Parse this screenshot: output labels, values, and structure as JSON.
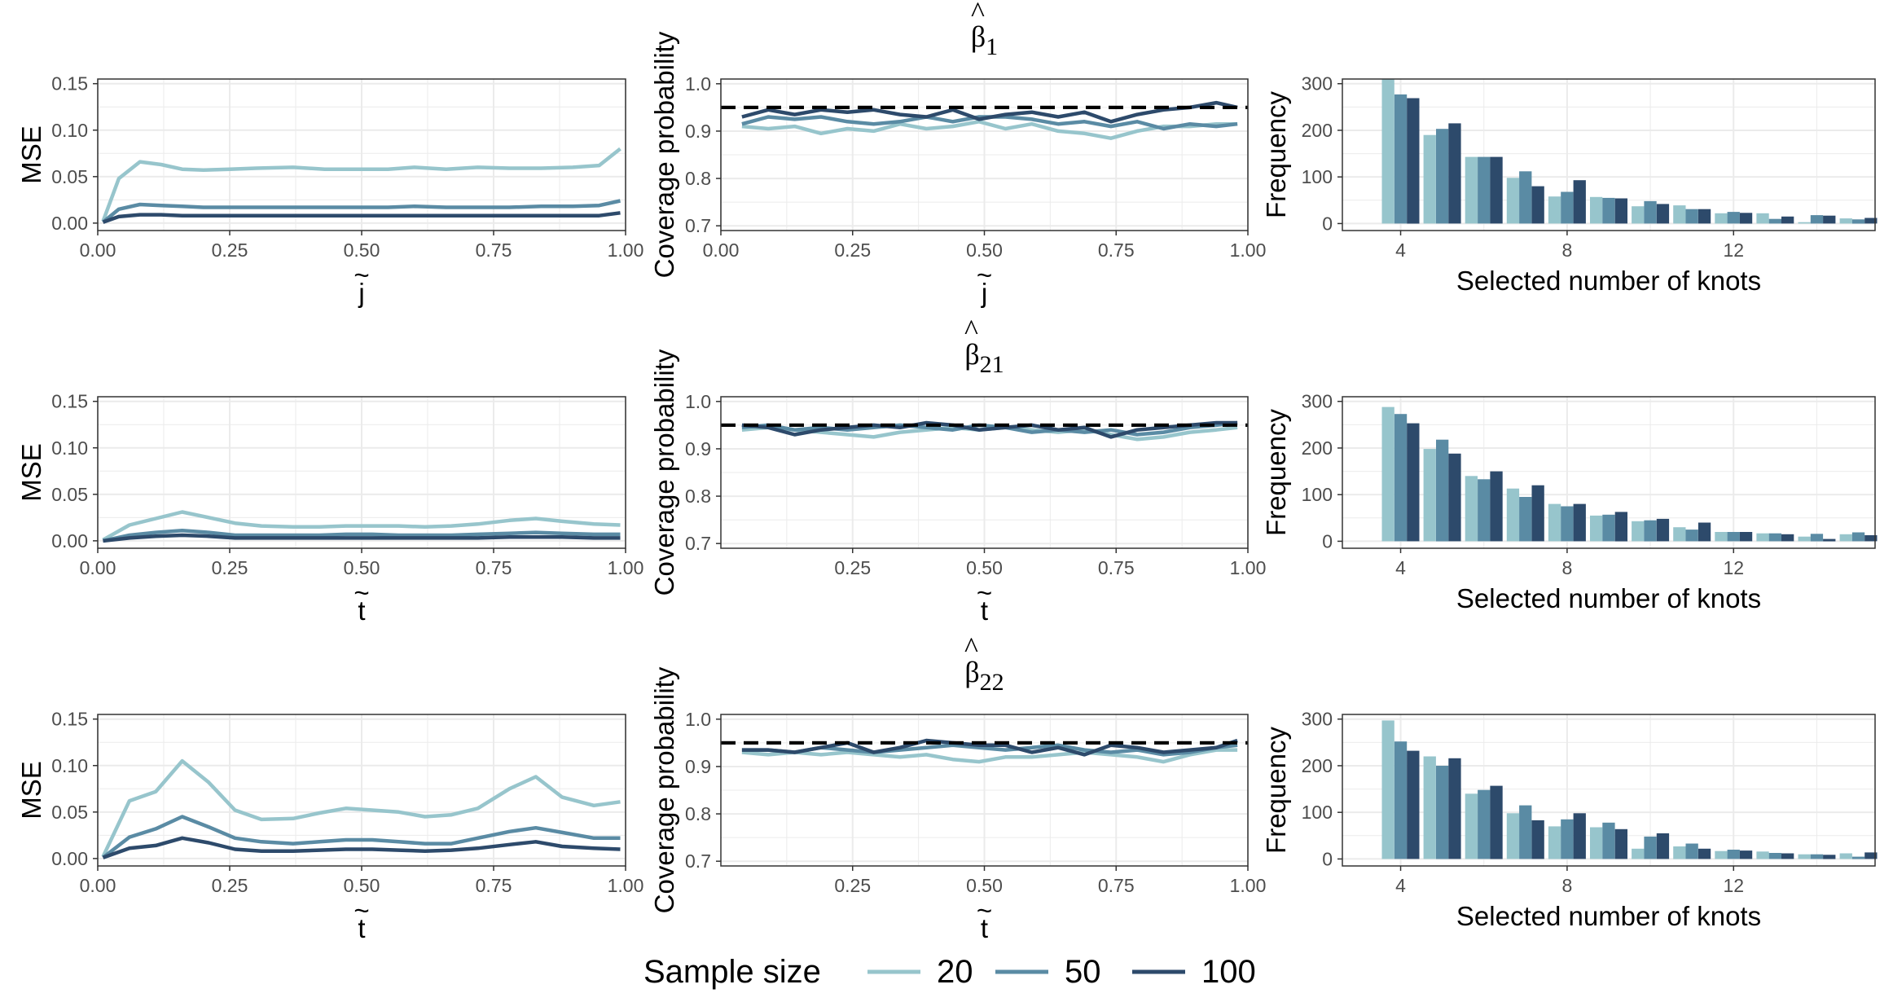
{
  "colors": {
    "n20": "#97c5cc",
    "n50": "#5a8ba4",
    "n100": "#2d4a6b",
    "reference": "#000000",
    "grid": "#ebebeb",
    "panel_border": "#333333"
  },
  "legend": {
    "title": "Sample size",
    "items": [
      {
        "label": "20",
        "color_key": "n20"
      },
      {
        "label": "50",
        "color_key": "n50"
      },
      {
        "label": "100",
        "color_key": "n100"
      }
    ]
  },
  "chart_data": [
    {
      "id": "mse-row1",
      "type": "line",
      "title": "",
      "xlabel": "j̃",
      "ylabel": "MSE",
      "xlim": [
        0,
        1
      ],
      "ylim": [
        -0.008,
        0.155
      ],
      "xticks": [
        0.0,
        0.25,
        0.5,
        0.75,
        1.0
      ],
      "xtick_labels": [
        "0.00",
        "0.25",
        "0.50",
        "0.75",
        "1.00"
      ],
      "yticks": [
        0.0,
        0.05,
        0.1,
        0.15
      ],
      "ytick_labels": [
        "0.00",
        "0.05",
        "0.10",
        "0.15"
      ],
      "x": [
        0.01,
        0.04,
        0.08,
        0.12,
        0.16,
        0.2,
        0.25,
        0.3,
        0.37,
        0.43,
        0.5,
        0.55,
        0.6,
        0.66,
        0.72,
        0.78,
        0.84,
        0.9,
        0.95,
        0.99
      ],
      "series": [
        {
          "name": "20",
          "color_key": "n20",
          "values": [
            0.002,
            0.048,
            0.066,
            0.063,
            0.058,
            0.057,
            0.058,
            0.059,
            0.06,
            0.058,
            0.058,
            0.058,
            0.06,
            0.058,
            0.06,
            0.059,
            0.059,
            0.06,
            0.062,
            0.08
          ]
        },
        {
          "name": "50",
          "color_key": "n50",
          "values": [
            0.001,
            0.015,
            0.02,
            0.019,
            0.018,
            0.017,
            0.017,
            0.017,
            0.017,
            0.017,
            0.017,
            0.017,
            0.018,
            0.017,
            0.017,
            0.017,
            0.018,
            0.018,
            0.019,
            0.024
          ]
        },
        {
          "name": "100",
          "color_key": "n100",
          "values": [
            0.001,
            0.007,
            0.009,
            0.009,
            0.008,
            0.008,
            0.008,
            0.008,
            0.008,
            0.008,
            0.008,
            0.008,
            0.008,
            0.008,
            0.008,
            0.008,
            0.008,
            0.008,
            0.008,
            0.011
          ]
        }
      ]
    },
    {
      "id": "coverage-row1",
      "type": "line",
      "title": "β̂1",
      "xlabel": "j̃",
      "ylabel": "Coverage probability",
      "xlim": [
        0,
        1
      ],
      "ylim": [
        0.69,
        1.01
      ],
      "xticks": [
        0.0,
        0.25,
        0.5,
        0.75,
        1.0
      ],
      "xtick_labels": [
        "0.00",
        "0.25",
        "0.50",
        "0.75",
        "1.00"
      ],
      "yticks": [
        0.7,
        0.8,
        0.9,
        1.0
      ],
      "ytick_labels": [
        "0.7",
        "0.8",
        "0.9",
        "1.0"
      ],
      "reference_line": 0.95,
      "x": [
        0.04,
        0.09,
        0.14,
        0.19,
        0.24,
        0.29,
        0.34,
        0.39,
        0.44,
        0.49,
        0.54,
        0.59,
        0.64,
        0.69,
        0.74,
        0.79,
        0.84,
        0.89,
        0.94,
        0.98
      ],
      "series": [
        {
          "name": "20",
          "color_key": "n20",
          "values": [
            0.91,
            0.905,
            0.91,
            0.895,
            0.905,
            0.9,
            0.915,
            0.905,
            0.91,
            0.92,
            0.905,
            0.915,
            0.9,
            0.895,
            0.885,
            0.9,
            0.91,
            0.91,
            0.915,
            0.915
          ]
        },
        {
          "name": "50",
          "color_key": "n50",
          "values": [
            0.915,
            0.93,
            0.925,
            0.93,
            0.92,
            0.915,
            0.92,
            0.93,
            0.92,
            0.93,
            0.93,
            0.925,
            0.915,
            0.92,
            0.91,
            0.92,
            0.905,
            0.915,
            0.91,
            0.915
          ]
        },
        {
          "name": "100",
          "color_key": "n100",
          "values": [
            0.93,
            0.945,
            0.935,
            0.945,
            0.94,
            0.945,
            0.935,
            0.93,
            0.945,
            0.925,
            0.935,
            0.94,
            0.93,
            0.94,
            0.92,
            0.935,
            0.945,
            0.95,
            0.96,
            0.95
          ]
        }
      ]
    },
    {
      "id": "knots-row1",
      "type": "bar",
      "title": "",
      "xlabel": "Selected number of knots",
      "ylabel": "Frequency",
      "xlim": [
        2.6,
        15.4
      ],
      "ylim": [
        -15,
        310
      ],
      "xticks": [
        4,
        8,
        12
      ],
      "xtick_labels": [
        "4",
        "8",
        "12"
      ],
      "yticks": [
        0,
        100,
        200,
        300
      ],
      "ytick_labels": [
        "0",
        "100",
        "200",
        "300"
      ],
      "categories": [
        4,
        5,
        6,
        7,
        8,
        9,
        10,
        11,
        12,
        13,
        14,
        15
      ],
      "series": [
        {
          "name": "20",
          "color_key": "n20",
          "values": [
            310,
            190,
            143,
            98,
            58,
            57,
            37,
            39,
            22,
            22,
            3,
            11
          ]
        },
        {
          "name": "50",
          "color_key": "n50",
          "values": [
            277,
            203,
            143,
            112,
            68,
            55,
            48,
            31,
            25,
            10,
            18,
            9
          ]
        },
        {
          "name": "100",
          "color_key": "n100",
          "values": [
            269,
            215,
            143,
            80,
            93,
            54,
            42,
            31,
            23,
            15,
            17,
            12
          ]
        }
      ]
    },
    {
      "id": "mse-row2",
      "type": "line",
      "title": "",
      "xlabel": "t̃",
      "ylabel": "MSE",
      "xlim": [
        0,
        1
      ],
      "ylim": [
        -0.008,
        0.155
      ],
      "xticks": [
        0.0,
        0.25,
        0.5,
        0.75,
        1.0
      ],
      "xtick_labels": [
        "0.00",
        "0.25",
        "0.50",
        "0.75",
        "1.00"
      ],
      "yticks": [
        0.0,
        0.05,
        0.1,
        0.15
      ],
      "ytick_labels": [
        "0.00",
        "0.05",
        "0.10",
        "0.15"
      ],
      "x": [
        0.01,
        0.06,
        0.11,
        0.16,
        0.21,
        0.26,
        0.31,
        0.37,
        0.42,
        0.47,
        0.52,
        0.57,
        0.62,
        0.67,
        0.72,
        0.78,
        0.83,
        0.88,
        0.94,
        0.99
      ],
      "series": [
        {
          "name": "20",
          "color_key": "n20",
          "values": [
            0.001,
            0.017,
            0.024,
            0.031,
            0.025,
            0.019,
            0.016,
            0.015,
            0.015,
            0.016,
            0.016,
            0.016,
            0.015,
            0.016,
            0.018,
            0.022,
            0.024,
            0.021,
            0.018,
            0.017
          ]
        },
        {
          "name": "50",
          "color_key": "n50",
          "values": [
            0.0,
            0.006,
            0.009,
            0.011,
            0.009,
            0.006,
            0.006,
            0.006,
            0.006,
            0.007,
            0.007,
            0.006,
            0.006,
            0.006,
            0.007,
            0.008,
            0.009,
            0.008,
            0.007,
            0.007
          ]
        },
        {
          "name": "100",
          "color_key": "n100",
          "values": [
            0.0,
            0.003,
            0.005,
            0.006,
            0.005,
            0.003,
            0.003,
            0.003,
            0.003,
            0.003,
            0.003,
            0.003,
            0.003,
            0.003,
            0.003,
            0.004,
            0.004,
            0.004,
            0.003,
            0.003
          ]
        }
      ]
    },
    {
      "id": "coverage-row2",
      "type": "line",
      "title": "β̂21",
      "xlabel": "t̃",
      "ylabel": "Coverage probability",
      "xlim": [
        0,
        1
      ],
      "ylim": [
        0.69,
        1.01
      ],
      "xticks": [
        0.25,
        0.5,
        0.75,
        1.0
      ],
      "xtick_labels": [
        "0.25",
        "0.50",
        "0.75",
        "1.00"
      ],
      "yticks": [
        0.7,
        0.8,
        0.9,
        1.0
      ],
      "ytick_labels": [
        "0.7",
        "0.8",
        "0.9",
        "1.0"
      ],
      "reference_line": 0.95,
      "x": [
        0.04,
        0.09,
        0.14,
        0.19,
        0.24,
        0.29,
        0.34,
        0.39,
        0.44,
        0.49,
        0.54,
        0.59,
        0.64,
        0.69,
        0.74,
        0.79,
        0.84,
        0.89,
        0.94,
        0.98
      ],
      "series": [
        {
          "name": "20",
          "color_key": "n20",
          "values": [
            0.94,
            0.945,
            0.94,
            0.935,
            0.93,
            0.925,
            0.935,
            0.94,
            0.945,
            0.94,
            0.945,
            0.94,
            0.935,
            0.94,
            0.93,
            0.92,
            0.925,
            0.935,
            0.94,
            0.945
          ]
        },
        {
          "name": "50",
          "color_key": "n50",
          "values": [
            0.945,
            0.95,
            0.94,
            0.945,
            0.94,
            0.945,
            0.95,
            0.945,
            0.94,
            0.95,
            0.945,
            0.935,
            0.94,
            0.935,
            0.94,
            0.93,
            0.935,
            0.945,
            0.95,
            0.955
          ]
        },
        {
          "name": "100",
          "color_key": "n100",
          "values": [
            0.95,
            0.945,
            0.93,
            0.94,
            0.945,
            0.95,
            0.945,
            0.955,
            0.95,
            0.94,
            0.945,
            0.95,
            0.94,
            0.945,
            0.925,
            0.94,
            0.945,
            0.95,
            0.955,
            0.955
          ]
        }
      ]
    },
    {
      "id": "knots-row2",
      "type": "bar",
      "title": "",
      "xlabel": "Selected number of knots",
      "ylabel": "Frequency",
      "xlim": [
        2.6,
        15.4
      ],
      "ylim": [
        -15,
        310
      ],
      "xticks": [
        4,
        8,
        12
      ],
      "xtick_labels": [
        "4",
        "8",
        "12"
      ],
      "yticks": [
        0,
        100,
        200,
        300
      ],
      "ytick_labels": [
        "0",
        "100",
        "200",
        "300"
      ],
      "categories": [
        4,
        5,
        6,
        7,
        8,
        9,
        10,
        11,
        12,
        13,
        14,
        15
      ],
      "series": [
        {
          "name": "20",
          "color_key": "n20",
          "values": [
            288,
            198,
            140,
            113,
            80,
            55,
            43,
            30,
            20,
            17,
            10,
            15
          ]
        },
        {
          "name": "50",
          "color_key": "n50",
          "values": [
            273,
            218,
            133,
            95,
            75,
            57,
            45,
            25,
            20,
            17,
            16,
            19
          ]
        },
        {
          "name": "100",
          "color_key": "n100",
          "values": [
            253,
            188,
            150,
            120,
            80,
            63,
            48,
            40,
            20,
            15,
            5,
            13
          ]
        }
      ]
    },
    {
      "id": "mse-row3",
      "type": "line",
      "title": "",
      "xlabel": "t̃",
      "ylabel": "MSE",
      "xlim": [
        0,
        1
      ],
      "ylim": [
        -0.008,
        0.155
      ],
      "xticks": [
        0.0,
        0.25,
        0.5,
        0.75,
        1.0
      ],
      "xtick_labels": [
        "0.00",
        "0.25",
        "0.50",
        "0.75",
        "1.00"
      ],
      "yticks": [
        0.0,
        0.05,
        0.1,
        0.15
      ],
      "ytick_labels": [
        "0.00",
        "0.05",
        "0.10",
        "0.15"
      ],
      "x": [
        0.01,
        0.06,
        0.11,
        0.16,
        0.21,
        0.26,
        0.31,
        0.37,
        0.42,
        0.47,
        0.52,
        0.57,
        0.62,
        0.67,
        0.72,
        0.78,
        0.83,
        0.88,
        0.94,
        0.99
      ],
      "series": [
        {
          "name": "20",
          "color_key": "n20",
          "values": [
            0.002,
            0.062,
            0.072,
            0.105,
            0.082,
            0.052,
            0.042,
            0.043,
            0.049,
            0.054,
            0.052,
            0.05,
            0.045,
            0.047,
            0.054,
            0.075,
            0.088,
            0.066,
            0.057,
            0.061
          ]
        },
        {
          "name": "50",
          "color_key": "n50",
          "values": [
            0.001,
            0.023,
            0.032,
            0.045,
            0.034,
            0.022,
            0.018,
            0.016,
            0.018,
            0.02,
            0.02,
            0.018,
            0.016,
            0.016,
            0.022,
            0.029,
            0.033,
            0.028,
            0.022,
            0.022
          ]
        },
        {
          "name": "100",
          "color_key": "n100",
          "values": [
            0.001,
            0.011,
            0.014,
            0.022,
            0.017,
            0.01,
            0.008,
            0.008,
            0.009,
            0.01,
            0.01,
            0.009,
            0.008,
            0.009,
            0.011,
            0.015,
            0.018,
            0.013,
            0.011,
            0.01
          ]
        }
      ]
    },
    {
      "id": "coverage-row3",
      "type": "line",
      "title": "β̂22",
      "xlabel": "t̃",
      "ylabel": "Coverage probability",
      "xlim": [
        0,
        1
      ],
      "ylim": [
        0.69,
        1.01
      ],
      "xticks": [
        0.25,
        0.5,
        0.75,
        1.0
      ],
      "xtick_labels": [
        "0.25",
        "0.50",
        "0.75",
        "1.00"
      ],
      "yticks": [
        0.7,
        0.8,
        0.9,
        1.0
      ],
      "ytick_labels": [
        "0.7",
        "0.8",
        "0.9",
        "1.0"
      ],
      "reference_line": 0.95,
      "x": [
        0.04,
        0.09,
        0.14,
        0.19,
        0.24,
        0.29,
        0.34,
        0.39,
        0.44,
        0.49,
        0.54,
        0.59,
        0.64,
        0.69,
        0.74,
        0.79,
        0.84,
        0.89,
        0.94,
        0.98
      ],
      "series": [
        {
          "name": "20",
          "color_key": "n20",
          "values": [
            0.93,
            0.925,
            0.93,
            0.925,
            0.93,
            0.925,
            0.92,
            0.925,
            0.915,
            0.91,
            0.92,
            0.92,
            0.925,
            0.93,
            0.925,
            0.92,
            0.91,
            0.925,
            0.935,
            0.935
          ]
        },
        {
          "name": "50",
          "color_key": "n50",
          "values": [
            0.935,
            0.935,
            0.93,
            0.94,
            0.935,
            0.93,
            0.935,
            0.94,
            0.945,
            0.94,
            0.935,
            0.94,
            0.945,
            0.935,
            0.93,
            0.935,
            0.925,
            0.93,
            0.94,
            0.945
          ]
        },
        {
          "name": "100",
          "color_key": "n100",
          "values": [
            0.935,
            0.935,
            0.93,
            0.94,
            0.95,
            0.93,
            0.94,
            0.955,
            0.95,
            0.945,
            0.945,
            0.93,
            0.94,
            0.925,
            0.945,
            0.94,
            0.93,
            0.935,
            0.94,
            0.955
          ]
        }
      ]
    },
    {
      "id": "knots-row3",
      "type": "bar",
      "title": "",
      "xlabel": "Selected number of knots",
      "ylabel": "Frequency",
      "xlim": [
        2.6,
        15.4
      ],
      "ylim": [
        -15,
        310
      ],
      "xticks": [
        4,
        8,
        12
      ],
      "xtick_labels": [
        "4",
        "8",
        "12"
      ],
      "yticks": [
        0,
        100,
        200,
        300
      ],
      "ytick_labels": [
        "0",
        "100",
        "200",
        "300"
      ],
      "categories": [
        4,
        5,
        6,
        7,
        8,
        9,
        10,
        11,
        12,
        13,
        14,
        15
      ],
      "series": [
        {
          "name": "20",
          "color_key": "n20",
          "values": [
            297,
            220,
            140,
            98,
            70,
            68,
            22,
            27,
            17,
            16,
            10,
            12
          ]
        },
        {
          "name": "50",
          "color_key": "n50",
          "values": [
            252,
            200,
            148,
            115,
            85,
            78,
            48,
            33,
            20,
            13,
            10,
            5
          ]
        },
        {
          "name": "100",
          "color_key": "n100",
          "values": [
            232,
            216,
            157,
            83,
            98,
            64,
            55,
            22,
            18,
            12,
            9,
            14
          ]
        }
      ]
    }
  ]
}
